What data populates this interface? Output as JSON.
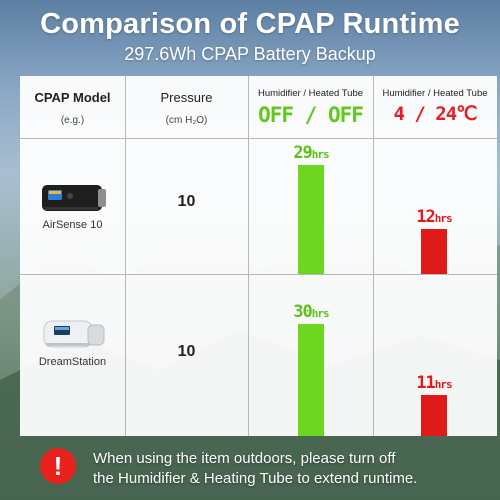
{
  "title": "Comparison of CPAP Runtime",
  "subtitle": "297.6Wh CPAP Battery Backup",
  "headers": {
    "model": "CPAP Model",
    "model_sub": "(e.g.)",
    "pressure": "Pressure",
    "pressure_sub": "(cm H₂O)",
    "col3_label": "Humidifier / Heated Tube",
    "col3_state": "OFF / OFF",
    "col4_label": "Humidifier / Heated Tube",
    "col4_state": "4 / 24℃"
  },
  "rows": [
    {
      "model": "AirSense 10",
      "pressure": "10"
    },
    {
      "model": "DreamStation",
      "pressure": "10"
    }
  ],
  "chart_data": {
    "type": "bar",
    "categories": [
      "AirSense 10",
      "DreamStation"
    ],
    "unit": "hrs",
    "series": [
      {
        "name": "OFF / OFF",
        "values": [
          29,
          30
        ],
        "color": "#6cd71e"
      },
      {
        "name": "4 / 24℃",
        "values": [
          12,
          11
        ],
        "color": "#e01919"
      }
    ],
    "labels": {
      "off": [
        "29",
        "30"
      ],
      "on": [
        "12",
        "11"
      ]
    }
  },
  "note": {
    "icon": "!",
    "text_line1": "When using the item outdoors, please turn off",
    "text_line2": "the Humidifier & Heating Tube to extend runtime."
  },
  "colors": {
    "off_green": "#6cd71e",
    "on_red": "#e01919",
    "alert_red": "#e8231e"
  }
}
